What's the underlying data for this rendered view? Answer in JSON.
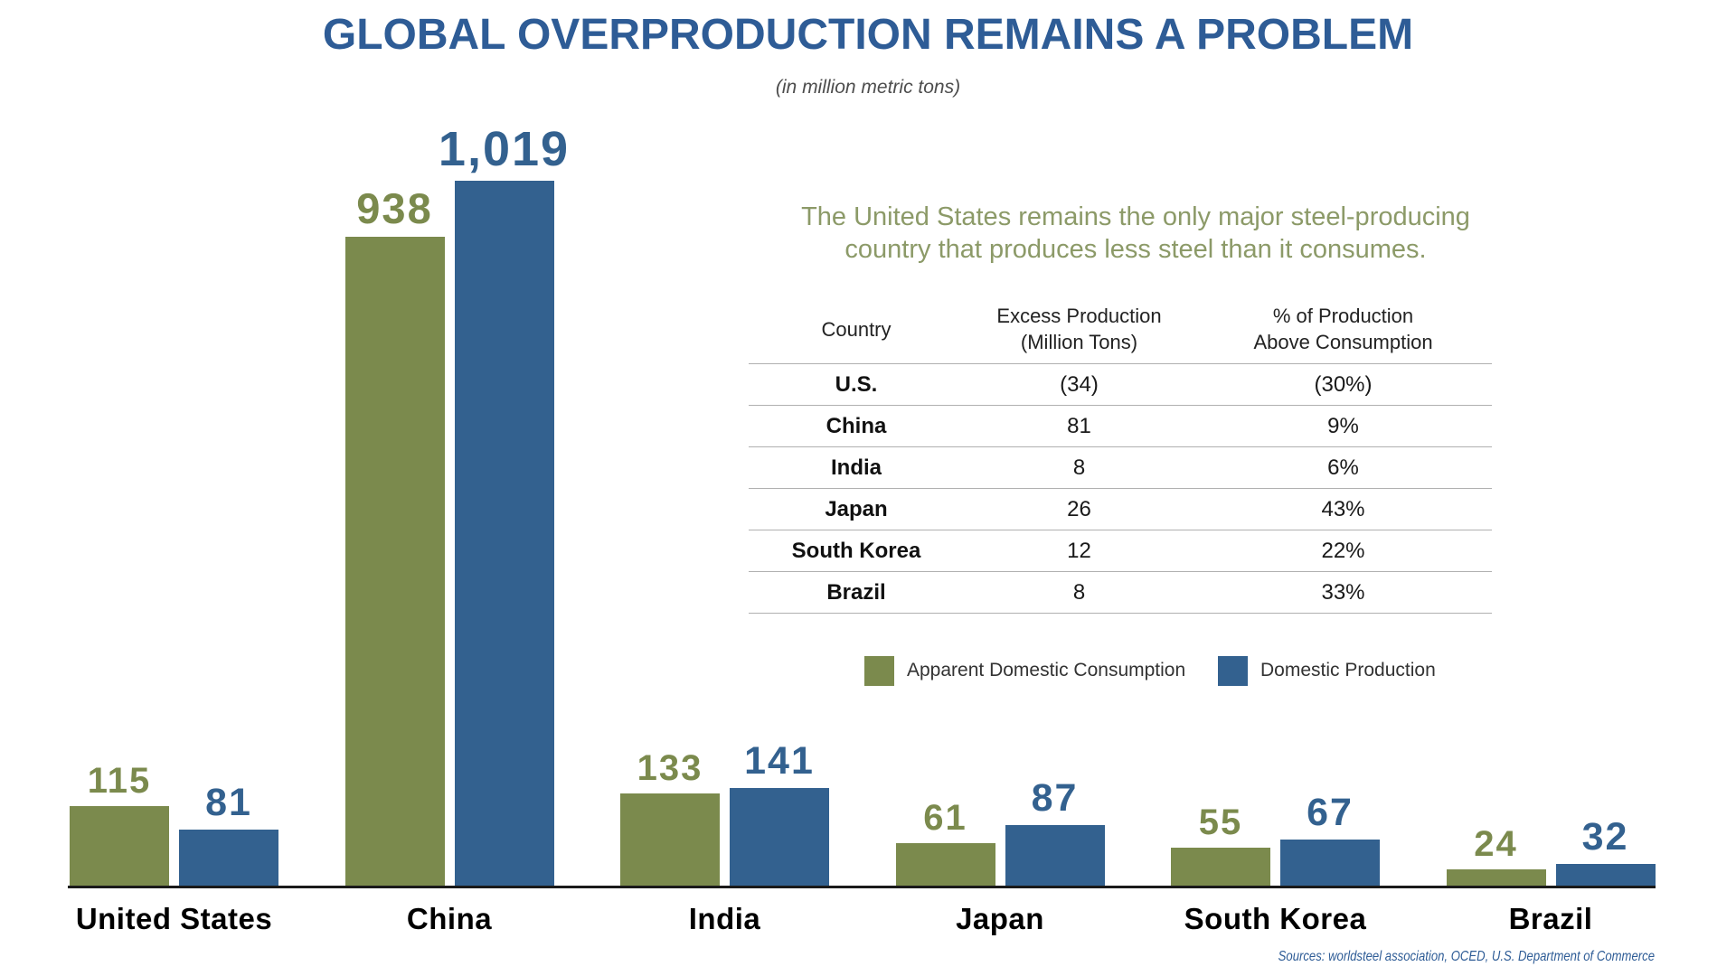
{
  "title": "GLOBAL OVERPRODUCTION REMAINS A PROBLEM",
  "subtitle": "(in million metric tons)",
  "callout": {
    "line1": "The United States remains the only major steel-producing",
    "line2": "country that produces less steel than it consumes."
  },
  "table": {
    "headers": [
      "Country",
      "Excess Production\n(Million Tons)",
      "% of Production\nAbove Consumption"
    ],
    "rows": [
      {
        "country": "U.S.",
        "excess": "(34)",
        "pct": "(30%)"
      },
      {
        "country": "China",
        "excess": "81",
        "pct": "9%"
      },
      {
        "country": "India",
        "excess": "8",
        "pct": "6%"
      },
      {
        "country": "Japan",
        "excess": "26",
        "pct": "43%"
      },
      {
        "country": "South Korea",
        "excess": "12",
        "pct": "22%"
      },
      {
        "country": "Brazil",
        "excess": "8",
        "pct": "33%"
      }
    ]
  },
  "legend": [
    {
      "label": "Apparent Domestic Consumption",
      "color": "#7b8a4d"
    },
    {
      "label": "Domestic Production",
      "color": "#33618f"
    }
  ],
  "chart_data": {
    "type": "bar",
    "categories": [
      "United States",
      "China",
      "India",
      "Japan",
      "South Korea",
      "Brazil"
    ],
    "series": [
      {
        "name": "Apparent Domestic Consumption",
        "color": "#7b8a4d",
        "values": [
          115,
          938,
          133,
          61,
          55,
          24
        ]
      },
      {
        "name": "Domestic Production",
        "color": "#33618f",
        "values": [
          81,
          1019,
          141,
          87,
          67,
          32
        ]
      }
    ],
    "title": "GLOBAL OVERPRODUCTION REMAINS A PROBLEM",
    "xlabel": "",
    "ylabel": "million metric tons",
    "ylim": [
      0,
      1019
    ],
    "grid": false,
    "legend_position": "middle-right",
    "bar_value_labels": true
  },
  "colors": {
    "title_blue": "#2e5c96",
    "subtitle_gray": "#4d4d4d",
    "callout_green": "#8c9a68",
    "bar_green": "#7b8a4d",
    "bar_blue": "#33618f",
    "source_blue": "#2e5c96"
  },
  "source": "Sources: worldsteel association, OCED, U.S. Department of Commerce"
}
